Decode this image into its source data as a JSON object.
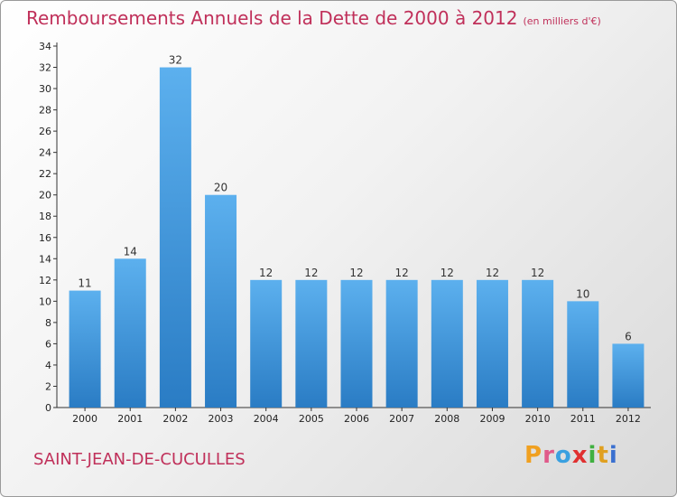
{
  "header": {
    "title": "Remboursements Annuels de la Dette de 2000 à 2012",
    "unit": "(en milliers d'€)"
  },
  "footer": {
    "commune": "SAINT-JEAN-DE-CUCULLES",
    "logo_letters": [
      "P",
      "r",
      "o",
      "x",
      "i",
      "t",
      "i"
    ],
    "logo_colors": [
      "#f0a020",
      "#e05a8a",
      "#3aa0e0",
      "#e03030",
      "#40b040",
      "#e0a020",
      "#3a70d0"
    ]
  },
  "chart_data": {
    "type": "bar",
    "title": "Remboursements Annuels de la Dette de 2000 à 2012",
    "xlabel": "",
    "ylabel": "",
    "categories": [
      "2000",
      "2001",
      "2002",
      "2003",
      "2004",
      "2005",
      "2006",
      "2007",
      "2008",
      "2009",
      "2010",
      "2011",
      "2012"
    ],
    "values": [
      11,
      14,
      32,
      20,
      12,
      12,
      12,
      12,
      12,
      12,
      12,
      10,
      6
    ],
    "ylim": [
      0,
      34
    ],
    "yticks": [
      0,
      2,
      4,
      6,
      8,
      10,
      12,
      14,
      16,
      18,
      20,
      22,
      24,
      26,
      28,
      30,
      32,
      34
    ],
    "grid": false,
    "bar_color": "#3f90d8"
  }
}
